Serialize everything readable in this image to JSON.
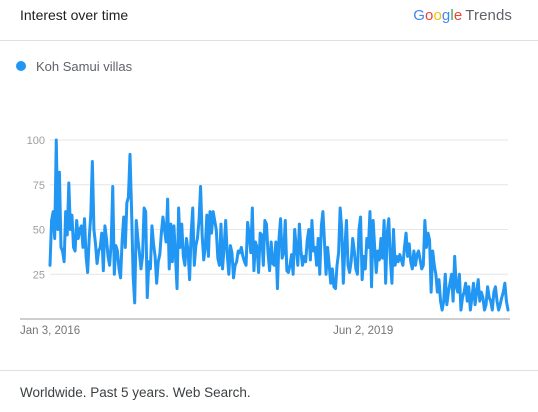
{
  "header": {
    "title": "Interest over time",
    "brand": {
      "letters": [
        "G",
        "o",
        "o",
        "g",
        "l",
        "e"
      ],
      "letter_colors": [
        "#4285F4",
        "#EA4335",
        "#FBBC05",
        "#4285F4",
        "#34A853",
        "#EA4335"
      ],
      "suffix": "Trends"
    }
  },
  "legend": {
    "label": "Koh Samui villas",
    "color": "#2196F3"
  },
  "footer": {
    "text": "Worldwide. Past 5 years. Web Search."
  },
  "chart_data": {
    "type": "line",
    "title": "",
    "xlabel": "",
    "ylabel": "",
    "ylim": [
      0,
      100
    ],
    "yticks": [
      25,
      50,
      75,
      100
    ],
    "xticks": [
      "Jan 3, 2016",
      "Jun 2, 2019"
    ],
    "x_range": [
      "Jan 3, 2016",
      "Dec 29, 2020"
    ],
    "grid": true,
    "legend_position": "top-left",
    "series": [
      {
        "name": "Koh Samui villas",
        "color": "#2196F3",
        "values": [
          30,
          55,
          60,
          45,
          100,
          50,
          82,
          40,
          38,
          32,
          60,
          47,
          76,
          50,
          58,
          40,
          38,
          55,
          45,
          50,
          52,
          40,
          56,
          35,
          26,
          45,
          58,
          88,
          50,
          42,
          31,
          38,
          40,
          48,
          27,
          52,
          45,
          35,
          30,
          42,
          74,
          25,
          41,
          38,
          28,
          23,
          44,
          57,
          40,
          65,
          68,
          92,
          61,
          24,
          9,
          55,
          45,
          37,
          28,
          35,
          62,
          60,
          12,
          32,
          28,
          52,
          42,
          35,
          20,
          32,
          36,
          48,
          57,
          50,
          43,
          67,
          28,
          53,
          32,
          52,
          35,
          17,
          62,
          40,
          53,
          35,
          30,
          45,
          38,
          22,
          48,
          62,
          30,
          41,
          45,
          55,
          74,
          47,
          33,
          40,
          58,
          35,
          60,
          48,
          60,
          55,
          50,
          34,
          30,
          53,
          28,
          40,
          55,
          36,
          25,
          41,
          37,
          23,
          30,
          32,
          38,
          37,
          40,
          35,
          32,
          30,
          54,
          47,
          37,
          62,
          27,
          43,
          40,
          26,
          48,
          47,
          30,
          55,
          53,
          37,
          27,
          43,
          31,
          30,
          43,
          17,
          45,
          56,
          34,
          37,
          55,
          27,
          26,
          30,
          36,
          25,
          50,
          40,
          30,
          53,
          38,
          30,
          35,
          32,
          44,
          50,
          33,
          55,
          38,
          40,
          30,
          45,
          25,
          52,
          60,
          43,
          25,
          40,
          30,
          20,
          28,
          18,
          17,
          30,
          37,
          62,
          50,
          20,
          40,
          55,
          30,
          26,
          32,
          45,
          38,
          28,
          25,
          50,
          57,
          22,
          35,
          28,
          45,
          40,
          60,
          18,
          55,
          40,
          26,
          38,
          33,
          45,
          34,
          55,
          20,
          48,
          56,
          33,
          20,
          50,
          30,
          35,
          32,
          36,
          33,
          30,
          40,
          48,
          35,
          42,
          32,
          28,
          38,
          30,
          36,
          38,
          33,
          28,
          30,
          55,
          40,
          48,
          44,
          15,
          38,
          30,
          25,
          15,
          22,
          10,
          5,
          10,
          25,
          8,
          15,
          20,
          25,
          10,
          35,
          18,
          15,
          25,
          5,
          12,
          15,
          20,
          10,
          18,
          5,
          12,
          20,
          8,
          15,
          22,
          10,
          15,
          12,
          5,
          8,
          18,
          12,
          10,
          5,
          15,
          18,
          10,
          5,
          8,
          12,
          15,
          20,
          10,
          5
        ]
      }
    ]
  }
}
